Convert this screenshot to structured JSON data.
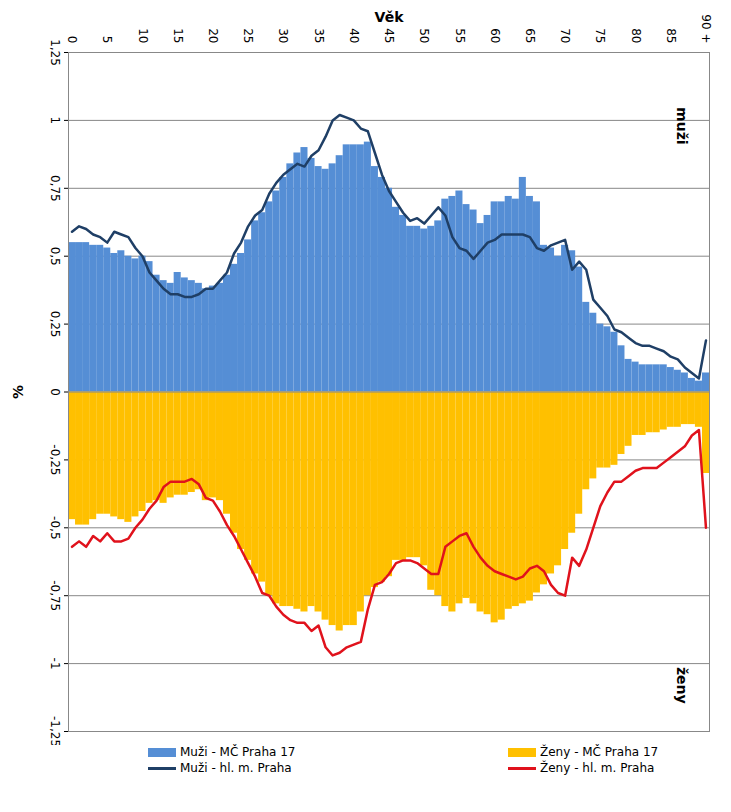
{
  "chart_data": {
    "type": "bar",
    "xlabel": "Věk",
    "ylabel": "%",
    "x": [
      0,
      1,
      2,
      3,
      4,
      5,
      6,
      7,
      8,
      9,
      10,
      11,
      12,
      13,
      14,
      15,
      16,
      17,
      18,
      19,
      20,
      21,
      22,
      23,
      24,
      25,
      26,
      27,
      28,
      29,
      30,
      31,
      32,
      33,
      34,
      35,
      36,
      37,
      38,
      39,
      40,
      41,
      42,
      43,
      44,
      45,
      46,
      47,
      48,
      49,
      50,
      51,
      52,
      53,
      54,
      55,
      56,
      57,
      58,
      59,
      60,
      61,
      62,
      63,
      64,
      65,
      66,
      67,
      68,
      69,
      70,
      71,
      72,
      73,
      74,
      75,
      76,
      77,
      78,
      79,
      80,
      81,
      82,
      83,
      84,
      85,
      86,
      87,
      88,
      89,
      90
    ],
    "xlim": [
      -0.5,
      90.5
    ],
    "xticks": [
      0,
      5,
      10,
      15,
      20,
      25,
      30,
      35,
      40,
      45,
      50,
      55,
      60,
      65,
      70,
      75,
      80,
      85,
      {
        "value": 90,
        "label": "90 +"
      }
    ],
    "ylim": [
      -1.25,
      1.25
    ],
    "yticks": [
      {
        "value": 1.25,
        "label": "1,25"
      },
      1,
      {
        "value": 0.75,
        "label": "0,75"
      },
      {
        "value": 0.5,
        "label": "0,5"
      },
      {
        "value": 0.25,
        "label": "0,25"
      },
      0,
      {
        "value": -0.25,
        "label": "-0,25"
      },
      {
        "value": -0.5,
        "label": "-0,5"
      },
      {
        "value": -0.75,
        "label": "-0,75"
      },
      -1,
      {
        "value": -1.25,
        "label": "-1,25"
      }
    ],
    "grid": true,
    "legend": "bottom",
    "annotations": [
      {
        "text": "muži",
        "x": 86.5,
        "y": 0.98
      },
      {
        "text": "ženy",
        "x": 86.5,
        "y": -1.08
      }
    ],
    "series": [
      {
        "name": "Muži - MČ Praha 17",
        "type": "bar",
        "color": "#558ed5",
        "values": [
          0.55,
          0.55,
          0.55,
          0.54,
          0.54,
          0.53,
          0.51,
          0.52,
          0.5,
          0.49,
          0.5,
          0.48,
          0.43,
          0.41,
          0.4,
          0.44,
          0.42,
          0.41,
          0.4,
          0.38,
          0.39,
          0.4,
          0.43,
          0.47,
          0.51,
          0.56,
          0.63,
          0.66,
          0.7,
          0.74,
          0.79,
          0.84,
          0.88,
          0.9,
          0.86,
          0.83,
          0.82,
          0.84,
          0.87,
          0.91,
          0.91,
          0.91,
          0.92,
          0.83,
          0.79,
          0.75,
          0.68,
          0.65,
          0.61,
          0.61,
          0.6,
          0.61,
          0.63,
          0.71,
          0.72,
          0.74,
          0.69,
          0.67,
          0.62,
          0.65,
          0.7,
          0.7,
          0.72,
          0.71,
          0.79,
          0.72,
          0.7,
          0.54,
          0.53,
          0.5,
          0.54,
          0.52,
          0.46,
          0.33,
          0.29,
          0.25,
          0.24,
          0.22,
          0.17,
          0.12,
          0.11,
          0.1,
          0.1,
          0.1,
          0.1,
          0.09,
          0.08,
          0.07,
          0.05,
          0.04,
          0.07
        ]
      },
      {
        "name": "Ženy - MČ Praha 17",
        "type": "bar",
        "color": "#ffc000",
        "values": [
          -0.47,
          -0.49,
          -0.49,
          -0.47,
          -0.45,
          -0.45,
          -0.46,
          -0.47,
          -0.48,
          -0.46,
          -0.44,
          -0.41,
          -0.4,
          -0.41,
          -0.39,
          -0.38,
          -0.38,
          -0.37,
          -0.36,
          -0.4,
          -0.39,
          -0.4,
          -0.45,
          -0.52,
          -0.58,
          -0.62,
          -0.67,
          -0.7,
          -0.75,
          -0.78,
          -0.79,
          -0.79,
          -0.8,
          -0.81,
          -0.79,
          -0.81,
          -0.84,
          -0.86,
          -0.88,
          -0.86,
          -0.86,
          -0.81,
          -0.75,
          -0.72,
          -0.7,
          -0.68,
          -0.62,
          -0.62,
          -0.61,
          -0.61,
          -0.64,
          -0.73,
          -0.75,
          -0.79,
          -0.81,
          -0.78,
          -0.76,
          -0.78,
          -0.81,
          -0.82,
          -0.85,
          -0.84,
          -0.8,
          -0.79,
          -0.78,
          -0.77,
          -0.74,
          -0.71,
          -0.67,
          -0.64,
          -0.58,
          -0.52,
          -0.45,
          -0.36,
          -0.32,
          -0.28,
          -0.28,
          -0.27,
          -0.23,
          -0.2,
          -0.16,
          -0.16,
          -0.15,
          -0.15,
          -0.14,
          -0.13,
          -0.13,
          -0.12,
          -0.12,
          -0.13,
          -0.3
        ]
      },
      {
        "name": "Muži - hl. m. Praha",
        "type": "line",
        "color": "#1f3f66",
        "values": [
          0.59,
          0.61,
          0.6,
          0.58,
          0.57,
          0.55,
          0.59,
          0.58,
          0.57,
          0.53,
          0.5,
          0.44,
          0.41,
          0.38,
          0.36,
          0.36,
          0.35,
          0.35,
          0.36,
          0.38,
          0.38,
          0.41,
          0.44,
          0.51,
          0.55,
          0.61,
          0.65,
          0.67,
          0.73,
          0.77,
          0.8,
          0.82,
          0.84,
          0.83,
          0.87,
          0.89,
          0.94,
          1.0,
          1.02,
          1.01,
          1.0,
          0.97,
          0.96,
          0.88,
          0.8,
          0.74,
          0.7,
          0.66,
          0.63,
          0.64,
          0.62,
          0.65,
          0.68,
          0.65,
          0.57,
          0.53,
          0.52,
          0.49,
          0.52,
          0.55,
          0.56,
          0.58,
          0.58,
          0.58,
          0.58,
          0.57,
          0.53,
          0.52,
          0.54,
          0.55,
          0.56,
          0.45,
          0.48,
          0.45,
          0.34,
          0.31,
          0.28,
          0.23,
          0.22,
          0.2,
          0.18,
          0.17,
          0.17,
          0.16,
          0.15,
          0.13,
          0.12,
          0.09,
          0.07,
          0.05,
          0.19
        ]
      },
      {
        "name": "Ženy - hl. m. Praha",
        "type": "line",
        "color": "#e0121c",
        "values": [
          -0.57,
          -0.55,
          -0.57,
          -0.53,
          -0.55,
          -0.52,
          -0.55,
          -0.55,
          -0.54,
          -0.5,
          -0.47,
          -0.43,
          -0.4,
          -0.35,
          -0.33,
          -0.33,
          -0.33,
          -0.32,
          -0.34,
          -0.39,
          -0.4,
          -0.44,
          -0.49,
          -0.53,
          -0.58,
          -0.63,
          -0.68,
          -0.74,
          -0.75,
          -0.79,
          -0.82,
          -0.84,
          -0.85,
          -0.85,
          -0.88,
          -0.86,
          -0.94,
          -0.97,
          -0.96,
          -0.94,
          -0.93,
          -0.92,
          -0.8,
          -0.71,
          -0.7,
          -0.67,
          -0.63,
          -0.62,
          -0.62,
          -0.63,
          -0.65,
          -0.67,
          -0.67,
          -0.57,
          -0.55,
          -0.53,
          -0.52,
          -0.57,
          -0.61,
          -0.64,
          -0.66,
          -0.67,
          -0.68,
          -0.69,
          -0.68,
          -0.65,
          -0.64,
          -0.66,
          -0.71,
          -0.74,
          -0.75,
          -0.61,
          -0.64,
          -0.58,
          -0.5,
          -0.42,
          -0.37,
          -0.33,
          -0.33,
          -0.31,
          -0.29,
          -0.28,
          -0.28,
          -0.28,
          -0.26,
          -0.24,
          -0.22,
          -0.2,
          -0.16,
          -0.14,
          -0.5
        ]
      }
    ]
  }
}
